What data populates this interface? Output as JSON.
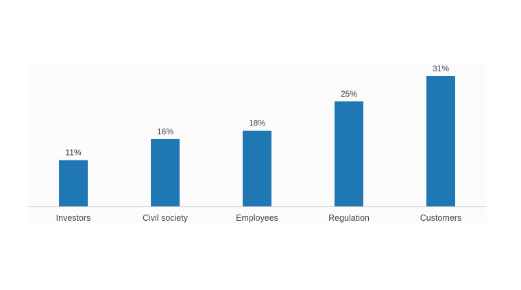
{
  "chart_data": {
    "type": "bar",
    "title": "",
    "xlabel": "",
    "ylabel": "",
    "categories": [
      "Investors",
      "Civil society",
      "Employees",
      "Regulation",
      "Customers"
    ],
    "values": [
      11,
      16,
      18,
      25,
      31
    ],
    "data_labels": [
      "11%",
      "16%",
      "18%",
      "25%",
      "31%"
    ],
    "unit": "%",
    "ylim": [
      0,
      31
    ],
    "grid": false,
    "legend": "none",
    "bar_color": "#1f77b4",
    "plot_background": "#fbfbfb"
  }
}
